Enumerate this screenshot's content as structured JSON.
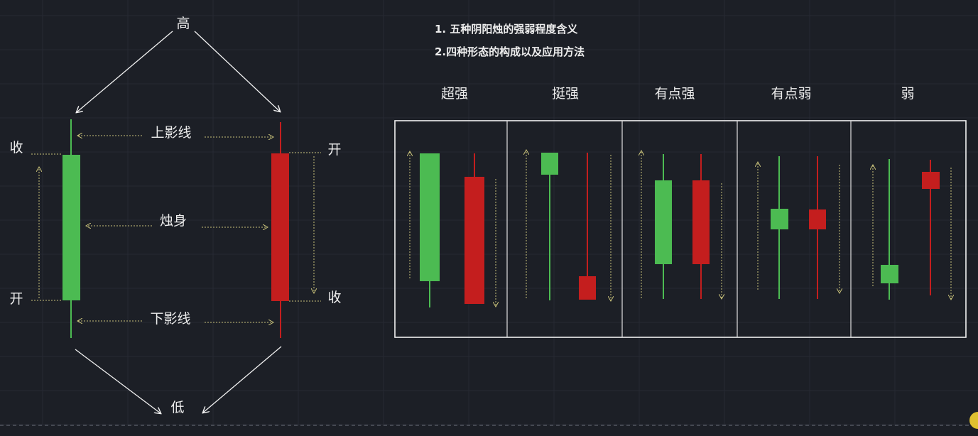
{
  "colors": {
    "background": "#1c1f26",
    "grid": "#262a33",
    "bullish_green": "#4cbb52",
    "bearish_red": "#c41e1e",
    "guide_yellow": "#c9c27a",
    "white": "#f2f2f2"
  },
  "title_lines": [
    "1. 五种阴阳烛的强弱程度含义",
    "2.四种形态的构成以及应用方法"
  ],
  "anatomy": {
    "high": "高",
    "low": "低",
    "upper_shadow": "上影线",
    "body": "烛身",
    "lower_shadow": "下影线",
    "green_close": "收",
    "green_open": "开",
    "red_open": "开",
    "red_close": "收"
  },
  "strength_columns": [
    {
      "label": "超强"
    },
    {
      "label": "挺强"
    },
    {
      "label": "有点强"
    },
    {
      "label": "有点弱"
    },
    {
      "label": "弱"
    }
  ],
  "strength_panel": {
    "strength_order": [
      "超强",
      "挺强",
      "有点强",
      "有点弱",
      "弱"
    ],
    "legend": "green = bullish (阳), red = bearish (阴)"
  }
}
